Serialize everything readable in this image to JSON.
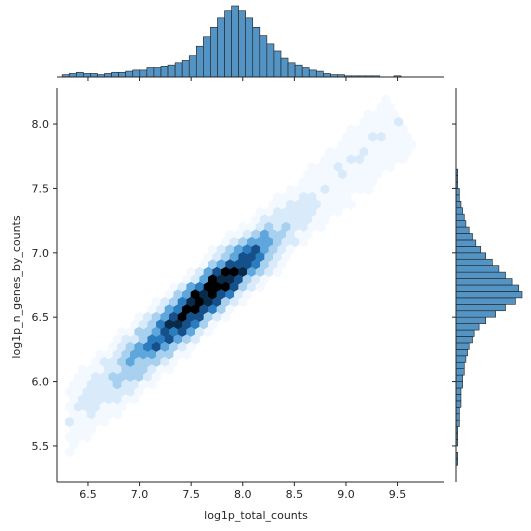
{
  "chart_data": {
    "type": "hexbin",
    "xlabel": "log1p_total_counts",
    "ylabel": "log1p_n_genes_by_counts",
    "xlim": [
      6.2,
      9.95
    ],
    "ylim": [
      5.22,
      8.28
    ],
    "x_ticks": [
      6.5,
      7.0,
      7.5,
      8.0,
      8.5,
      9.0,
      9.5
    ],
    "x_tick_labels": [
      "6.5",
      "7.0",
      "7.5",
      "8.0",
      "8.5",
      "9.0",
      "9.5"
    ],
    "y_ticks": [
      5.5,
      6.0,
      6.5,
      7.0,
      7.5,
      8.0
    ],
    "y_tick_labels": [
      "5.5",
      "6.0",
      "6.5",
      "7.0",
      "7.5",
      "8.0"
    ],
    "grid": false,
    "joint_relationship": {
      "center": [
        7.7,
        6.7
      ],
      "approx_fit": "log1p_n_genes_by_counts ≈ 0.72 × log1p_total_counts + 1.16",
      "x_range": [
        6.3,
        9.7
      ],
      "y_range": [
        5.35,
        8.12
      ]
    },
    "marginal_x_histogram": {
      "bin_width": 0.0684,
      "bin_start": 6.25,
      "counts": [
        2,
        3,
        4,
        3,
        3,
        2,
        3,
        4,
        4,
        5,
        6,
        6,
        8,
        8,
        9,
        10,
        12,
        14,
        18,
        26,
        34,
        42,
        50,
        56,
        60,
        56,
        50,
        42,
        35,
        28,
        22,
        16,
        12,
        10,
        8,
        6,
        5,
        3,
        2,
        2,
        1,
        1,
        1,
        1,
        1,
        0,
        0,
        1,
        0,
        0,
        0,
        0,
        0,
        0,
        0,
        0,
        1,
        0
      ]
    },
    "marginal_y_histogram": {
      "bin_width": 0.05,
      "bin_start": 5.35,
      "counts": [
        1,
        1,
        0,
        1,
        1,
        1,
        2,
        2,
        2,
        3,
        3,
        3,
        4,
        4,
        5,
        5,
        6,
        7,
        8,
        10,
        11,
        14,
        18,
        24,
        30,
        36,
        40,
        38,
        34,
        30,
        26,
        22,
        18,
        15,
        12,
        10,
        8,
        6,
        5,
        4,
        3,
        2,
        2,
        1,
        1,
        1,
        0,
        0,
        0,
        0,
        0,
        0,
        0,
        0,
        0,
        0
      ]
    },
    "colormap": [
      "#f4f9ff",
      "#d9ebfa",
      "#a8d0ef",
      "#5ea6dc",
      "#2b7bbf",
      "#15508a",
      "#0a2a4a",
      "#000000"
    ],
    "histogram_color": "#5494c4",
    "histogram_edge": "#1f1f1f"
  }
}
